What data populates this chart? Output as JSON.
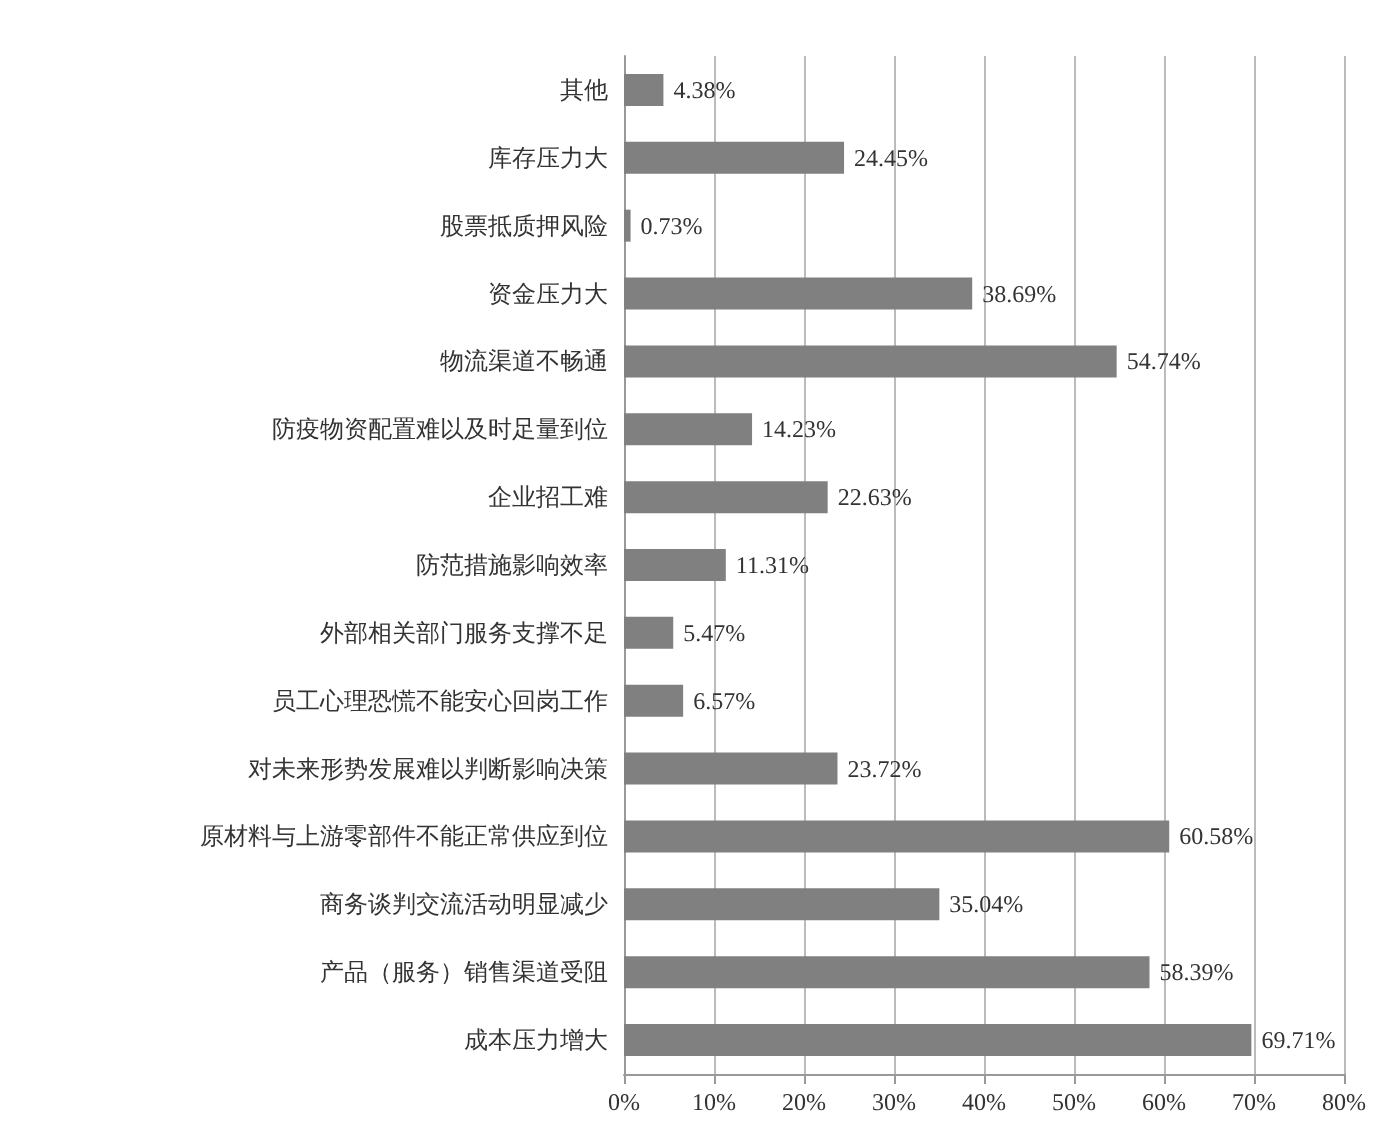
{
  "chart_data": {
    "type": "bar",
    "orientation": "horizontal",
    "categories": [
      "其他",
      "库存压力大",
      "股票抵质押风险",
      "资金压力大",
      "物流渠道不畅通",
      "防疫物资配置难以及时足量到位",
      "企业招工难",
      "防范措施影响效率",
      "外部相关部门服务支撑不足",
      "员工心理恐慌不能安心回岗工作",
      "对未来形势发展难以判断影响决策",
      "原材料与上游零部件不能正常供应到位",
      "商务谈判交流活动明显减少",
      "产品（服务）销售渠道受阻",
      "成本压力增大"
    ],
    "values": [
      4.38,
      24.45,
      0.73,
      38.69,
      54.74,
      14.23,
      22.63,
      11.31,
      5.47,
      6.57,
      23.72,
      60.58,
      35.04,
      58.39,
      69.71
    ],
    "value_labels": [
      "4.38%",
      "24.45%",
      "0.73%",
      "38.69%",
      "54.74%",
      "14.23%",
      "22.63%",
      "11.31%",
      "5.47%",
      "6.57%",
      "23.72%",
      "60.58%",
      "35.04%",
      "58.39%",
      "69.71%"
    ],
    "color": "#808080",
    "xlim": [
      0,
      80
    ],
    "xticks": [
      {
        "value": 0,
        "label": "0%"
      },
      {
        "value": 10,
        "label": "10%"
      },
      {
        "value": 20,
        "label": "20%"
      },
      {
        "value": 30,
        "label": "30%"
      },
      {
        "value": 40,
        "label": "40%"
      },
      {
        "value": 50,
        "label": "50%"
      },
      {
        "value": 60,
        "label": "60%"
      },
      {
        "value": 70,
        "label": "70%"
      },
      {
        "value": 80,
        "label": "80%"
      }
    ],
    "grid": "x"
  }
}
